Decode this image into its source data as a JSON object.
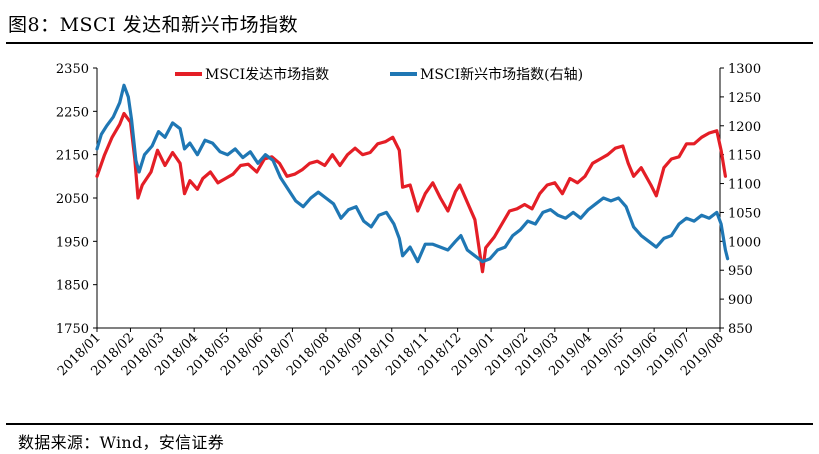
{
  "figure": {
    "title": "图8：MSCI 发达和新兴市场指数",
    "source": "数据来源：Wind，安信证券"
  },
  "colors": {
    "developed": "#e41e26",
    "emerging": "#1f77b4",
    "axis": "#000000"
  },
  "chart_data": {
    "type": "line",
    "x_tick_labels": [
      "2018/01",
      "2018/02",
      "2018/03",
      "2018/04",
      "2018/05",
      "2018/06",
      "2018/07",
      "2018/08",
      "2018/09",
      "2018/10",
      "2018/11",
      "2018/12",
      "2019/01",
      "2019/02",
      "2019/03",
      "2019/04",
      "2019/05",
      "2019/06",
      "2019/07",
      "2019/08"
    ],
    "x_range": [
      "2018/01",
      "2019/08"
    ],
    "y_left": {
      "lim": [
        1750,
        2350
      ],
      "ticks": [
        1750,
        1850,
        1950,
        2050,
        2150,
        2250,
        2350
      ]
    },
    "y_right": {
      "lim": [
        850,
        1300
      ],
      "ticks": [
        850,
        900,
        950,
        1000,
        1050,
        1100,
        1150,
        1200,
        1250,
        1300
      ]
    },
    "legend_position": "top",
    "grid": false,
    "series": [
      {
        "name": "MSCI发达市场指数",
        "axis": "left",
        "color": "#e41e26",
        "points": [
          [
            "2018/01/01",
            2100
          ],
          [
            "2018/01/08",
            2150
          ],
          [
            "2018/01/15",
            2190
          ],
          [
            "2018/01/22",
            2220
          ],
          [
            "2018/01/26",
            2245
          ],
          [
            "2018/02/01",
            2225
          ],
          [
            "2018/02/05",
            2140
          ],
          [
            "2018/02/08",
            2050
          ],
          [
            "2018/02/12",
            2080
          ],
          [
            "2018/02/20",
            2110
          ],
          [
            "2018/02/26",
            2160
          ],
          [
            "2018/03/05",
            2125
          ],
          [
            "2018/03/12",
            2155
          ],
          [
            "2018/03/19",
            2130
          ],
          [
            "2018/03/23",
            2060
          ],
          [
            "2018/03/28",
            2090
          ],
          [
            "2018/04/04",
            2070
          ],
          [
            "2018/04/09",
            2095
          ],
          [
            "2018/04/16",
            2110
          ],
          [
            "2018/04/23",
            2085
          ],
          [
            "2018/04/30",
            2095
          ],
          [
            "2018/05/07",
            2105
          ],
          [
            "2018/05/14",
            2125
          ],
          [
            "2018/05/21",
            2128
          ],
          [
            "2018/05/29",
            2110
          ],
          [
            "2018/06/05",
            2140
          ],
          [
            "2018/06/12",
            2145
          ],
          [
            "2018/06/19",
            2130
          ],
          [
            "2018/06/26",
            2100
          ],
          [
            "2018/07/03",
            2105
          ],
          [
            "2018/07/10",
            2115
          ],
          [
            "2018/07/17",
            2130
          ],
          [
            "2018/07/24",
            2135
          ],
          [
            "2018/07/31",
            2125
          ],
          [
            "2018/08/07",
            2150
          ],
          [
            "2018/08/14",
            2125
          ],
          [
            "2018/08/21",
            2150
          ],
          [
            "2018/08/28",
            2165
          ],
          [
            "2018/09/04",
            2150
          ],
          [
            "2018/09/11",
            2155
          ],
          [
            "2018/09/18",
            2175
          ],
          [
            "2018/09/25",
            2180
          ],
          [
            "2018/10/02",
            2190
          ],
          [
            "2018/10/08",
            2160
          ],
          [
            "2018/10/11",
            2075
          ],
          [
            "2018/10/18",
            2080
          ],
          [
            "2018/10/25",
            2020
          ],
          [
            "2018/11/01",
            2060
          ],
          [
            "2018/11/08",
            2085
          ],
          [
            "2018/11/15",
            2050
          ],
          [
            "2018/11/22",
            2020
          ],
          [
            "2018/11/29",
            2065
          ],
          [
            "2018/12/03",
            2080
          ],
          [
            "2018/12/10",
            2040
          ],
          [
            "2018/12/17",
            2000
          ],
          [
            "2018/12/24",
            1880
          ],
          [
            "2018/12/27",
            1935
          ],
          [
            "2019/01/04",
            1960
          ],
          [
            "2019/01/11",
            1990
          ],
          [
            "2019/01/18",
            2020
          ],
          [
            "2019/01/25",
            2025
          ],
          [
            "2019/02/01",
            2035
          ],
          [
            "2019/02/08",
            2025
          ],
          [
            "2019/02/15",
            2060
          ],
          [
            "2019/02/22",
            2080
          ],
          [
            "2019/03/01",
            2085
          ],
          [
            "2019/03/08",
            2060
          ],
          [
            "2019/03/15",
            2095
          ],
          [
            "2019/03/22",
            2085
          ],
          [
            "2019/03/29",
            2100
          ],
          [
            "2019/04/05",
            2130
          ],
          [
            "2019/04/12",
            2140
          ],
          [
            "2019/04/19",
            2150
          ],
          [
            "2019/04/26",
            2165
          ],
          [
            "2019/05/03",
            2170
          ],
          [
            "2019/05/08",
            2130
          ],
          [
            "2019/05/13",
            2100
          ],
          [
            "2019/05/20",
            2120
          ],
          [
            "2019/05/29",
            2080
          ],
          [
            "2019/06/03",
            2055
          ],
          [
            "2019/06/10",
            2120
          ],
          [
            "2019/06/17",
            2140
          ],
          [
            "2019/06/24",
            2145
          ],
          [
            "2019/07/01",
            2175
          ],
          [
            "2019/07/08",
            2175
          ],
          [
            "2019/07/15",
            2190
          ],
          [
            "2019/07/22",
            2200
          ],
          [
            "2019/07/29",
            2205
          ],
          [
            "2019/08/02",
            2160
          ],
          [
            "2019/08/06",
            2100
          ]
        ]
      },
      {
        "name": "MSCI新兴市场指数(右轴)",
        "axis": "right",
        "color": "#1f77b4",
        "points": [
          [
            "2018/01/01",
            1160
          ],
          [
            "2018/01/05",
            1185
          ],
          [
            "2018/01/10",
            1200
          ],
          [
            "2018/01/16",
            1215
          ],
          [
            "2018/01/22",
            1240
          ],
          [
            "2018/01/26",
            1270
          ],
          [
            "2018/01/30",
            1250
          ],
          [
            "2018/02/02",
            1210
          ],
          [
            "2018/02/06",
            1140
          ],
          [
            "2018/02/09",
            1120
          ],
          [
            "2018/02/14",
            1150
          ],
          [
            "2018/02/21",
            1165
          ],
          [
            "2018/02/27",
            1190
          ],
          [
            "2018/03/05",
            1180
          ],
          [
            "2018/03/12",
            1205
          ],
          [
            "2018/03/19",
            1195
          ],
          [
            "2018/03/23",
            1160
          ],
          [
            "2018/03/28",
            1170
          ],
          [
            "2018/04/04",
            1150
          ],
          [
            "2018/04/11",
            1175
          ],
          [
            "2018/04/18",
            1170
          ],
          [
            "2018/04/25",
            1155
          ],
          [
            "2018/05/02",
            1150
          ],
          [
            "2018/05/09",
            1160
          ],
          [
            "2018/05/16",
            1145
          ],
          [
            "2018/05/23",
            1155
          ],
          [
            "2018/05/30",
            1135
          ],
          [
            "2018/06/06",
            1150
          ],
          [
            "2018/06/13",
            1140
          ],
          [
            "2018/06/20",
            1110
          ],
          [
            "2018/06/27",
            1090
          ],
          [
            "2018/07/04",
            1070
          ],
          [
            "2018/07/11",
            1060
          ],
          [
            "2018/07/18",
            1075
          ],
          [
            "2018/07/25",
            1085
          ],
          [
            "2018/08/01",
            1075
          ],
          [
            "2018/08/08",
            1065
          ],
          [
            "2018/08/15",
            1040
          ],
          [
            "2018/08/22",
            1055
          ],
          [
            "2018/08/29",
            1060
          ],
          [
            "2018/09/05",
            1035
          ],
          [
            "2018/09/12",
            1025
          ],
          [
            "2018/09/19",
            1045
          ],
          [
            "2018/09/26",
            1050
          ],
          [
            "2018/10/03",
            1030
          ],
          [
            "2018/10/08",
            1005
          ],
          [
            "2018/10/11",
            975
          ],
          [
            "2018/10/18",
            990
          ],
          [
            "2018/10/25",
            965
          ],
          [
            "2018/11/01",
            995
          ],
          [
            "2018/11/08",
            995
          ],
          [
            "2018/11/15",
            990
          ],
          [
            "2018/11/22",
            985
          ],
          [
            "2018/11/29",
            1000
          ],
          [
            "2018/12/04",
            1010
          ],
          [
            "2018/12/10",
            985
          ],
          [
            "2018/12/17",
            975
          ],
          [
            "2018/12/24",
            965
          ],
          [
            "2018/12/31",
            970
          ],
          [
            "2019/01/07",
            985
          ],
          [
            "2019/01/14",
            990
          ],
          [
            "2019/01/21",
            1010
          ],
          [
            "2019/01/28",
            1020
          ],
          [
            "2019/02/04",
            1035
          ],
          [
            "2019/02/11",
            1030
          ],
          [
            "2019/02/18",
            1050
          ],
          [
            "2019/02/25",
            1055
          ],
          [
            "2019/03/04",
            1045
          ],
          [
            "2019/03/11",
            1040
          ],
          [
            "2019/03/18",
            1050
          ],
          [
            "2019/03/25",
            1040
          ],
          [
            "2019/04/01",
            1055
          ],
          [
            "2019/04/08",
            1065
          ],
          [
            "2019/04/15",
            1075
          ],
          [
            "2019/04/22",
            1070
          ],
          [
            "2019/04/29",
            1075
          ],
          [
            "2019/05/06",
            1060
          ],
          [
            "2019/05/13",
            1025
          ],
          [
            "2019/05/20",
            1010
          ],
          [
            "2019/05/27",
            1000
          ],
          [
            "2019/06/03",
            990
          ],
          [
            "2019/06/10",
            1005
          ],
          [
            "2019/06/17",
            1010
          ],
          [
            "2019/06/24",
            1030
          ],
          [
            "2019/07/01",
            1040
          ],
          [
            "2019/07/08",
            1035
          ],
          [
            "2019/07/15",
            1045
          ],
          [
            "2019/07/22",
            1040
          ],
          [
            "2019/07/29",
            1050
          ],
          [
            "2019/08/02",
            1030
          ],
          [
            "2019/08/06",
            985
          ],
          [
            "2019/08/08",
            970
          ]
        ]
      }
    ]
  }
}
